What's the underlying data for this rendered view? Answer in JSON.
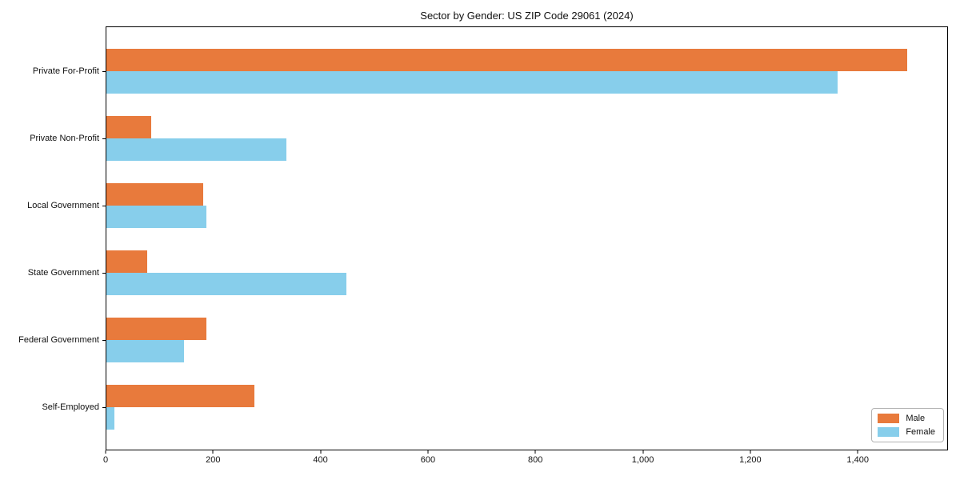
{
  "title": "Sector by Gender: US ZIP Code 29061 (2024)",
  "chart_data": {
    "type": "bar",
    "orientation": "horizontal",
    "title": "Sector by Gender: US ZIP Code 29061 (2024)",
    "xlabel": "",
    "ylabel": "",
    "categories": [
      "Private For-Profit",
      "Private Non-Profit",
      "Local Government",
      "State Government",
      "Federal Government",
      "Self-Employed"
    ],
    "series": [
      {
        "name": "Male",
        "color": "#E87A3C",
        "values": [
          1494,
          83,
          180,
          76,
          186,
          276
        ]
      },
      {
        "name": "Female",
        "color": "#87CEEB",
        "values": [
          1364,
          336,
          187,
          447,
          144,
          15
        ]
      }
    ],
    "xlim": [
      0,
      1568
    ],
    "x_ticks": [
      0,
      200,
      400,
      600,
      800,
      1000,
      1200,
      1400
    ],
    "x_tick_labels": [
      "0",
      "200",
      "400",
      "600",
      "800",
      "1,000",
      "1,200",
      "1,400"
    ],
    "grid": false,
    "legend_position": "lower right"
  },
  "legend": {
    "items": [
      {
        "label": "Male",
        "color": "#E87A3C"
      },
      {
        "label": "Female",
        "color": "#87CEEB"
      }
    ]
  }
}
